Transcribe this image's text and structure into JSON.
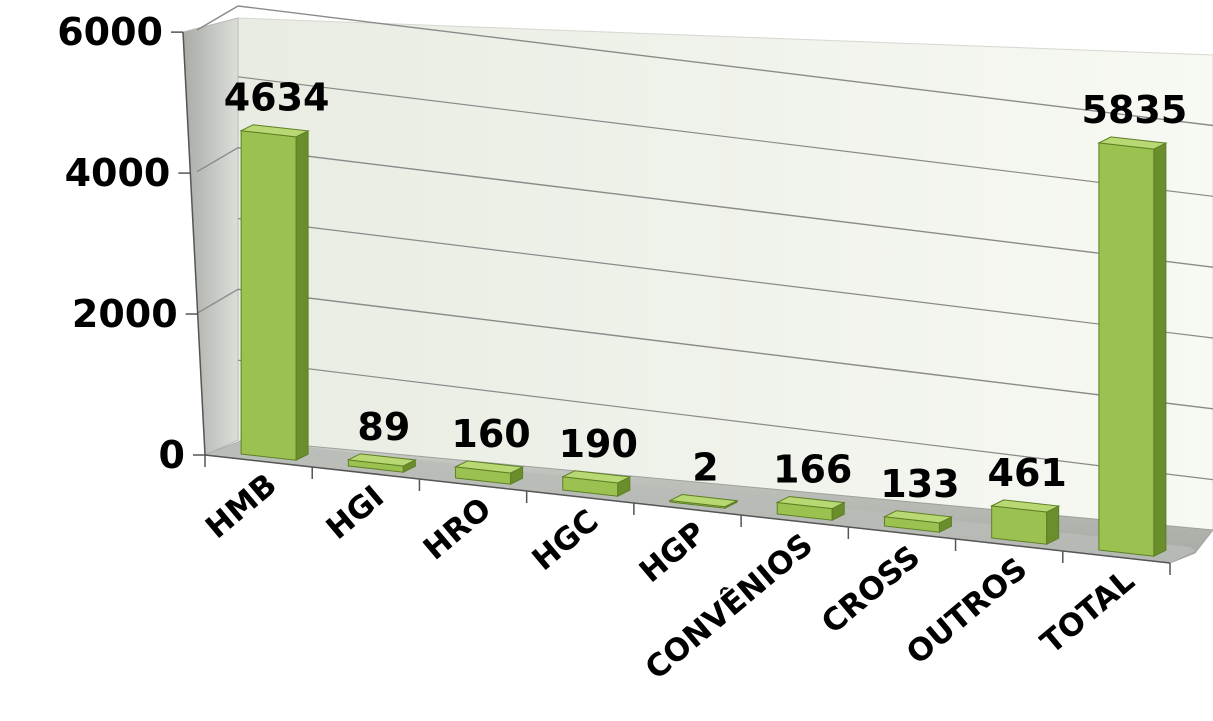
{
  "chart_data": {
    "type": "bar",
    "title": "",
    "xlabel": "",
    "ylabel": "",
    "categories": [
      "HMB",
      "HGI",
      "HRO",
      "HGC",
      "HGP",
      "CONVÊNIOS",
      "CROSS",
      "OUTROS",
      "TOTAL"
    ],
    "values": [
      4634,
      89,
      160,
      190,
      2,
      166,
      133,
      461,
      5835
    ],
    "value_labels": [
      "4634",
      "89",
      "160",
      "190",
      "2",
      "166",
      "133",
      "461",
      "5835"
    ],
    "yticks": [
      "0",
      "2000",
      "4000",
      "6000"
    ],
    "ylim": [
      0,
      6000
    ],
    "grid": true,
    "legend": "none",
    "three_d": true,
    "colors": {
      "bar_front": "#9bc250",
      "bar_side": "#6a8e2c",
      "bar_top": "#b7d873",
      "wall": "#f3f6ee",
      "side_wall": "#cfd1cc",
      "floor": "#b9bcb6",
      "grid": "#8a8a8a"
    }
  }
}
